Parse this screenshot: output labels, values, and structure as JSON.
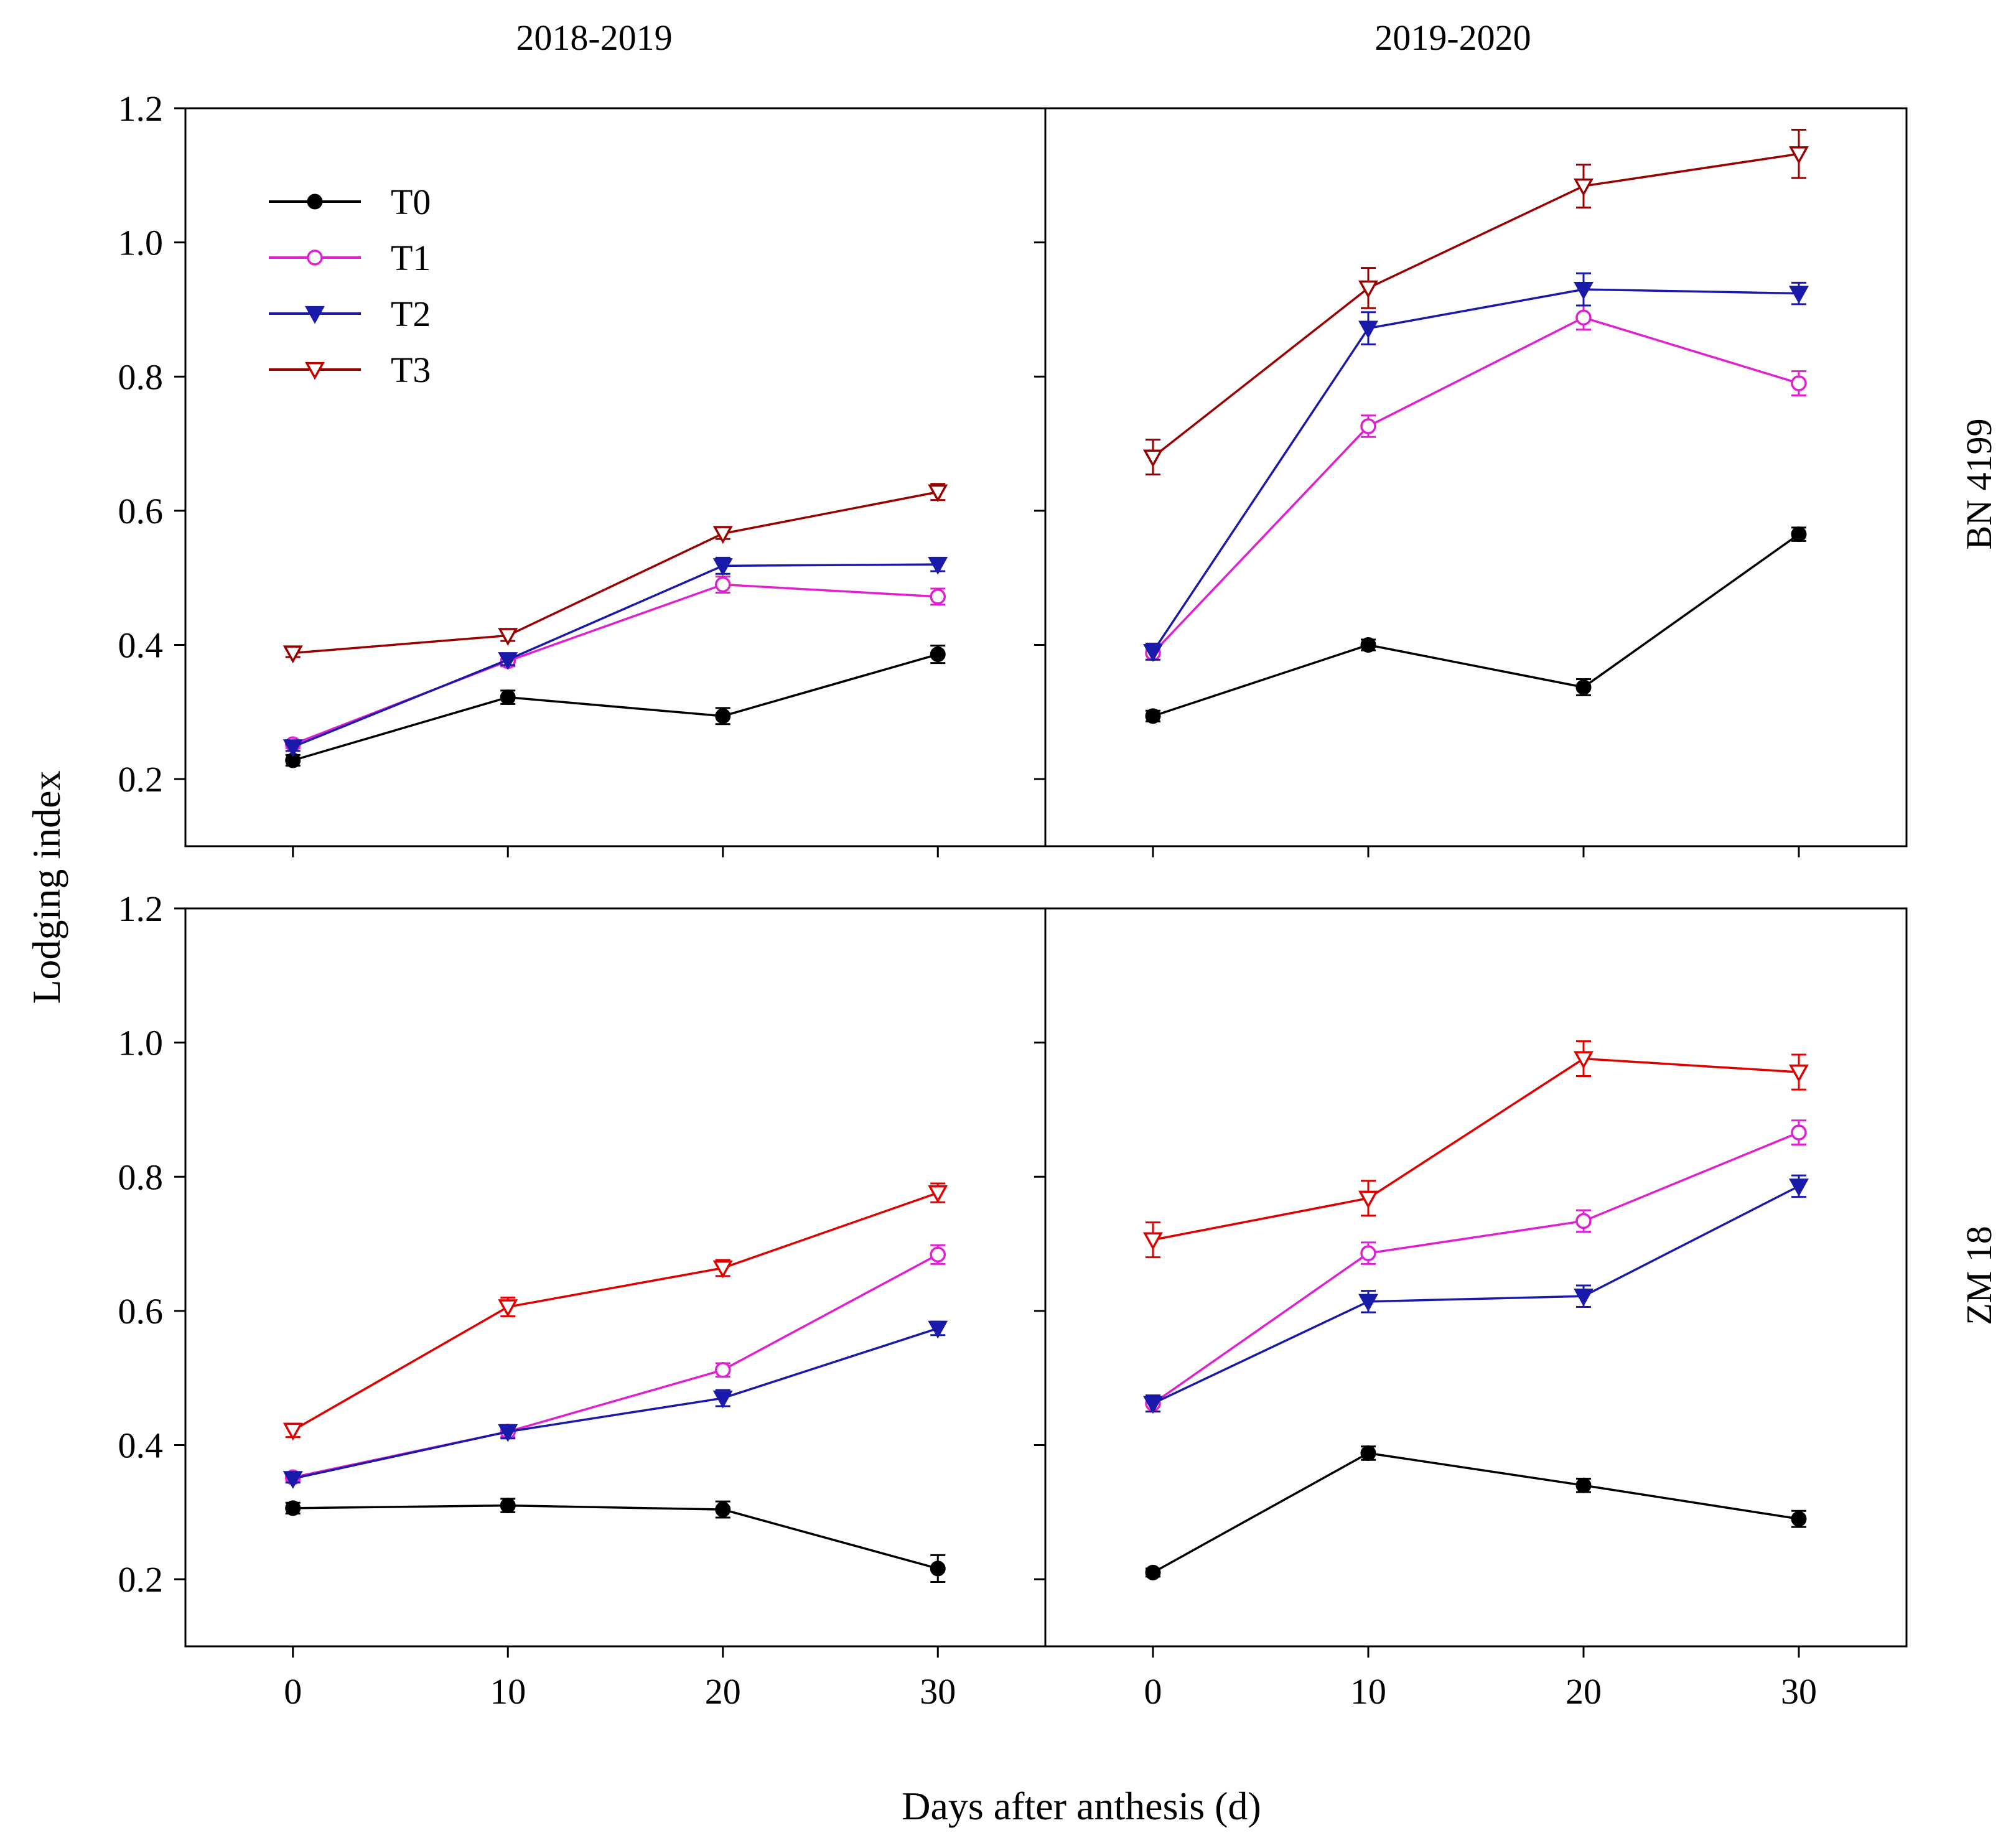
{
  "figure": {
    "xlabel": "Days after anthesis (d)",
    "ylabel": "Lodging index",
    "columns": [
      "2018-2019",
      "2019-2020"
    ],
    "rows": [
      "BN 4199",
      "ZM 18"
    ]
  },
  "legend": [
    {
      "name": "T0",
      "color": "#000000",
      "marker": "filled-circle"
    },
    {
      "name": "T1",
      "color": "#e020d0",
      "marker": "open-circle"
    },
    {
      "name": "T2",
      "color": "#1a1aaa",
      "marker": "filled-triangle-down"
    },
    {
      "name": "T3",
      "color": "#c00000",
      "marker": "open-triangle-down"
    }
  ],
  "chart_data": [
    {
      "type": "line",
      "row": "BN 4199",
      "title": "2018-2019",
      "x": [
        0,
        10,
        20,
        30
      ],
      "xlim": [
        -5,
        35
      ],
      "ylim": [
        0.1,
        1.2
      ],
      "yticks": [
        0.2,
        0.4,
        0.6,
        0.8,
        1.0,
        1.2
      ],
      "xticks": [
        0,
        10,
        20,
        30
      ],
      "series": [
        {
          "name": "T0",
          "values": [
            0.228,
            0.322,
            0.294,
            0.386
          ],
          "errors": [
            0.008,
            0.01,
            0.012,
            0.013
          ],
          "color": "#000000"
        },
        {
          "name": "T1",
          "values": [
            0.252,
            0.376,
            0.49,
            0.472
          ],
          "errors": [
            0.006,
            0.008,
            0.012,
            0.012
          ],
          "color": "#e020d0"
        },
        {
          "name": "T2",
          "values": [
            0.248,
            0.378,
            0.518,
            0.52
          ],
          "errors": [
            0.006,
            0.008,
            0.012,
            0.01
          ],
          "color": "#1a1aaa"
        },
        {
          "name": "T3",
          "values": [
            0.388,
            0.414,
            0.566,
            0.628
          ],
          "errors": [
            0.006,
            0.008,
            0.008,
            0.012
          ],
          "color": "#990000"
        }
      ]
    },
    {
      "type": "line",
      "row": "BN 4199",
      "title": "2019-2020",
      "x": [
        0,
        10,
        20,
        30
      ],
      "xlim": [
        -5,
        35
      ],
      "ylim": [
        0.1,
        1.2
      ],
      "yticks": [
        0.2,
        0.4,
        0.6,
        0.8,
        1.0,
        1.2
      ],
      "xticks": [
        0,
        10,
        20,
        30
      ],
      "series": [
        {
          "name": "T0",
          "values": [
            0.294,
            0.4,
            0.337,
            0.565
          ],
          "errors": [
            0.008,
            0.008,
            0.012,
            0.01
          ],
          "color": "#000000"
        },
        {
          "name": "T1",
          "values": [
            0.388,
            0.726,
            0.888,
            0.79
          ],
          "errors": [
            0.01,
            0.016,
            0.018,
            0.018
          ],
          "color": "#e020d0"
        },
        {
          "name": "T2",
          "values": [
            0.39,
            0.872,
            0.93,
            0.924
          ],
          "errors": [
            0.012,
            0.024,
            0.024,
            0.016
          ],
          "color": "#1a1aaa"
        },
        {
          "name": "T3",
          "values": [
            0.68,
            0.932,
            1.084,
            1.132
          ],
          "errors": [
            0.026,
            0.03,
            0.032,
            0.036
          ],
          "color": "#990000"
        }
      ]
    },
    {
      "type": "line",
      "row": "ZM 18",
      "title": "2018-2019",
      "x": [
        0,
        10,
        20,
        30
      ],
      "xlim": [
        -5,
        35
      ],
      "ylim": [
        0.1,
        1.2
      ],
      "yticks": [
        0.2,
        0.4,
        0.6,
        0.8,
        1.0,
        1.2
      ],
      "xticks": [
        0,
        10,
        20,
        30
      ],
      "series": [
        {
          "name": "T0",
          "values": [
            0.306,
            0.31,
            0.304,
            0.216
          ],
          "errors": [
            0.008,
            0.01,
            0.012,
            0.02
          ],
          "color": "#000000"
        },
        {
          "name": "T1",
          "values": [
            0.352,
            0.42,
            0.512,
            0.684
          ],
          "errors": [
            0.006,
            0.008,
            0.01,
            0.014
          ],
          "color": "#e020d0"
        },
        {
          "name": "T2",
          "values": [
            0.35,
            0.42,
            0.47,
            0.574
          ],
          "errors": [
            0.006,
            0.01,
            0.012,
            0.01
          ],
          "color": "#1a1aaa"
        },
        {
          "name": "T3",
          "values": [
            0.422,
            0.606,
            0.664,
            0.776
          ],
          "errors": [
            0.01,
            0.014,
            0.012,
            0.014
          ],
          "color": "#e00000"
        }
      ]
    },
    {
      "type": "line",
      "row": "ZM 18",
      "title": "2019-2020",
      "x": [
        0,
        10,
        20,
        30
      ],
      "xlim": [
        -5,
        35
      ],
      "ylim": [
        0.1,
        1.2
      ],
      "yticks": [
        0.2,
        0.4,
        0.6,
        0.8,
        1.0,
        1.2
      ],
      "xticks": [
        0,
        10,
        20,
        30
      ],
      "series": [
        {
          "name": "T0",
          "values": [
            0.21,
            0.388,
            0.34,
            0.29
          ],
          "errors": [
            0.006,
            0.01,
            0.01,
            0.012
          ],
          "color": "#000000"
        },
        {
          "name": "T1",
          "values": [
            0.462,
            0.686,
            0.734,
            0.866
          ],
          "errors": [
            0.012,
            0.016,
            0.016,
            0.018
          ],
          "color": "#e020d0"
        },
        {
          "name": "T2",
          "values": [
            0.462,
            0.614,
            0.622,
            0.786
          ],
          "errors": [
            0.012,
            0.016,
            0.016,
            0.016
          ],
          "color": "#1a1aaa"
        },
        {
          "name": "T3",
          "values": [
            0.706,
            0.768,
            0.976,
            0.956
          ],
          "errors": [
            0.026,
            0.026,
            0.026,
            0.026
          ],
          "color": "#e00000"
        }
      ]
    }
  ]
}
